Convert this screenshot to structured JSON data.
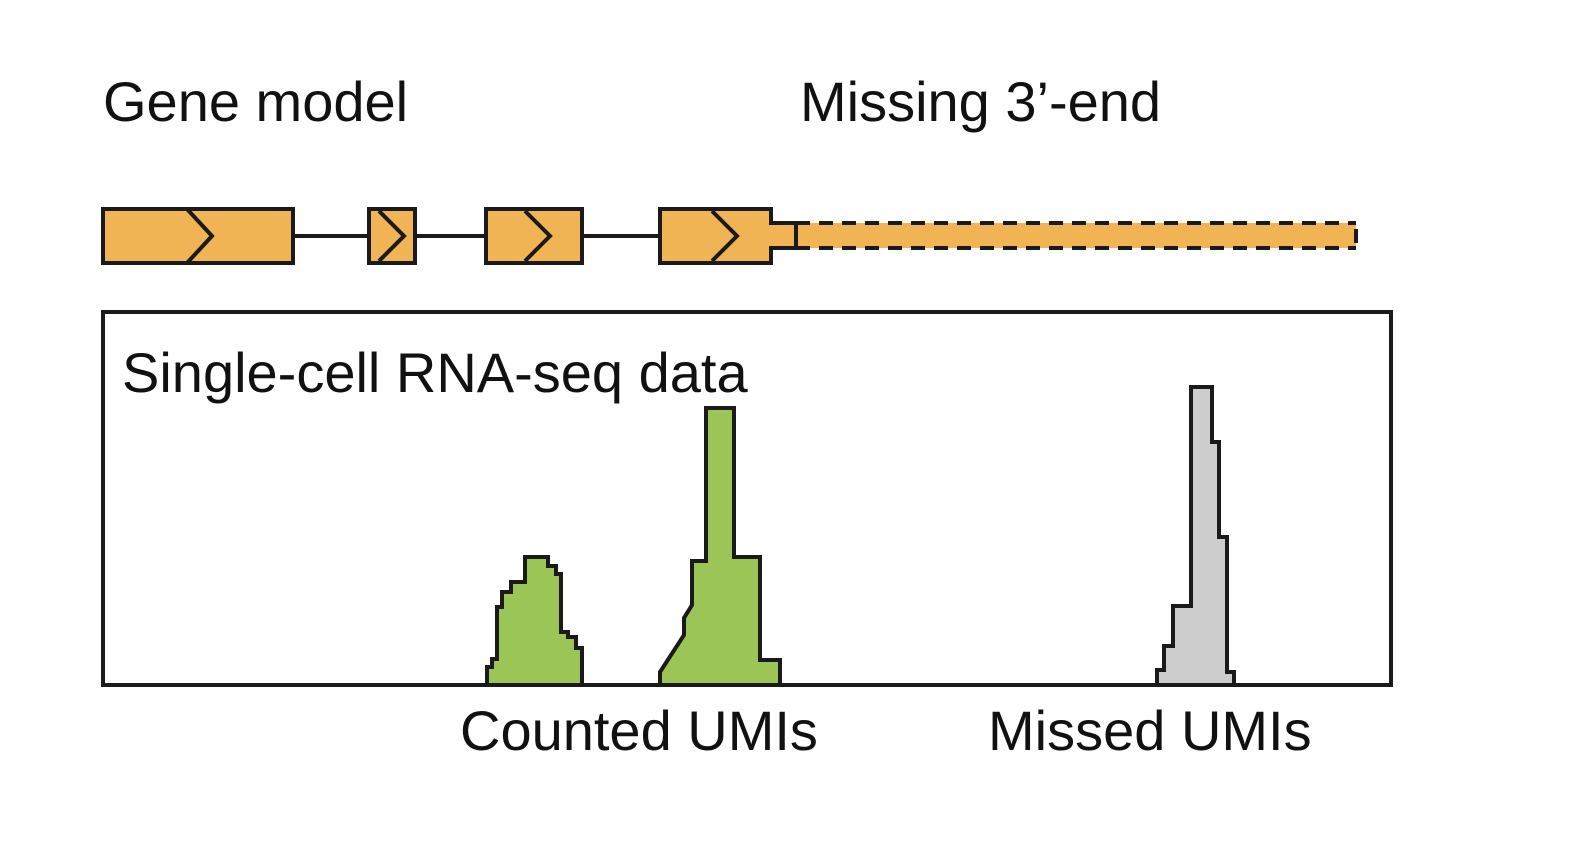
{
  "labels": {
    "gene_model": "Gene model",
    "missing_end": "Missing 3’-end",
    "panel_title": "Single-cell RNA-seq data",
    "counted": "Counted UMIs",
    "missed": "Missed UMIs"
  },
  "colors": {
    "exon": "#F0B455",
    "counted_peak": "#9BC657",
    "missed_peak": "#CDCDCD",
    "outline": "#1a1a1a",
    "background": "#ffffff"
  },
  "gene_model": {
    "exon_count": 4,
    "strand_marker": "chevron-right-icon",
    "missing_extension_style": "dashed"
  }
}
